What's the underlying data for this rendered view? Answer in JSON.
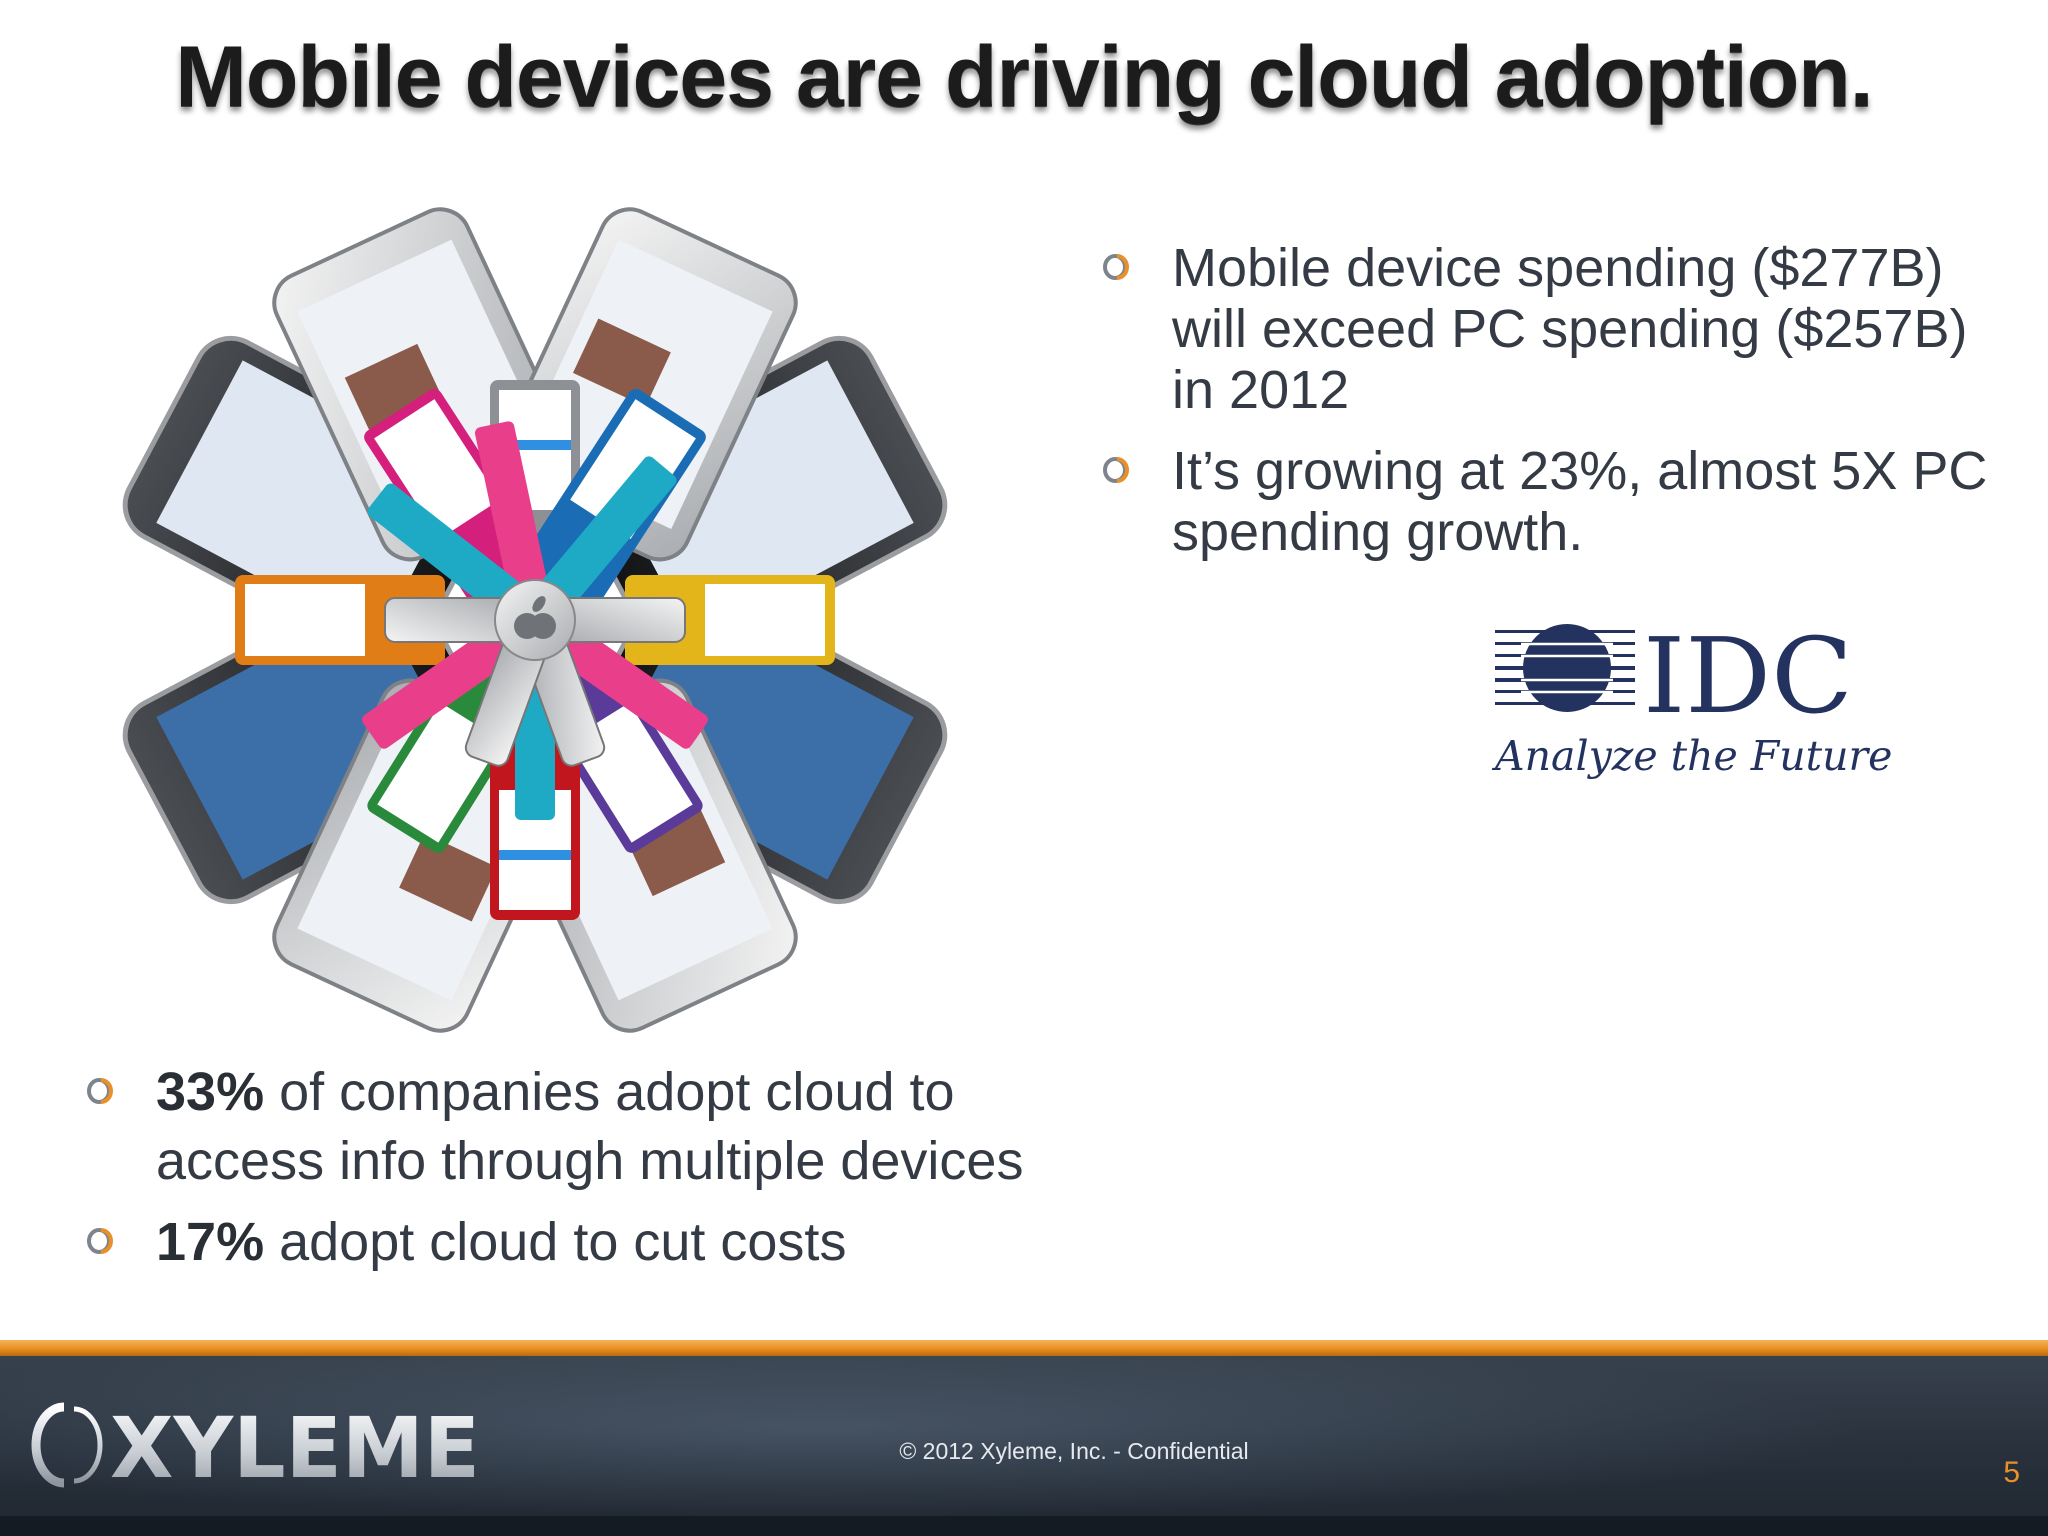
{
  "slide": {
    "title": "Mobile devices are driving cloud adoption."
  },
  "right_bullets": [
    "Mobile device spending ($277B) will exceed PC spending ($257B) in 2012",
    "It’s growing at 23%, almost 5X PC spending growth."
  ],
  "left_bullets": [
    {
      "bold": "33%",
      "text": " of companies adopt cloud to access info through multiple devices"
    },
    {
      "bold": "17%",
      "text": " adopt cloud to cut costs"
    }
  ],
  "idc_logo": {
    "wordmark": "IDC",
    "tagline": "Analyze the Future"
  },
  "footer": {
    "brand": "XYLEME",
    "copyright": "© 2012 Xyleme, Inc. -  Confidential",
    "page_number": "5"
  },
  "colors": {
    "accent_orange": "#e8902a",
    "footer_dark": "#28313c",
    "idc_blue": "#23325e"
  },
  "icons": {
    "bullet": "orange-ring-bullet-icon",
    "hero": "device-fan-illustration"
  }
}
